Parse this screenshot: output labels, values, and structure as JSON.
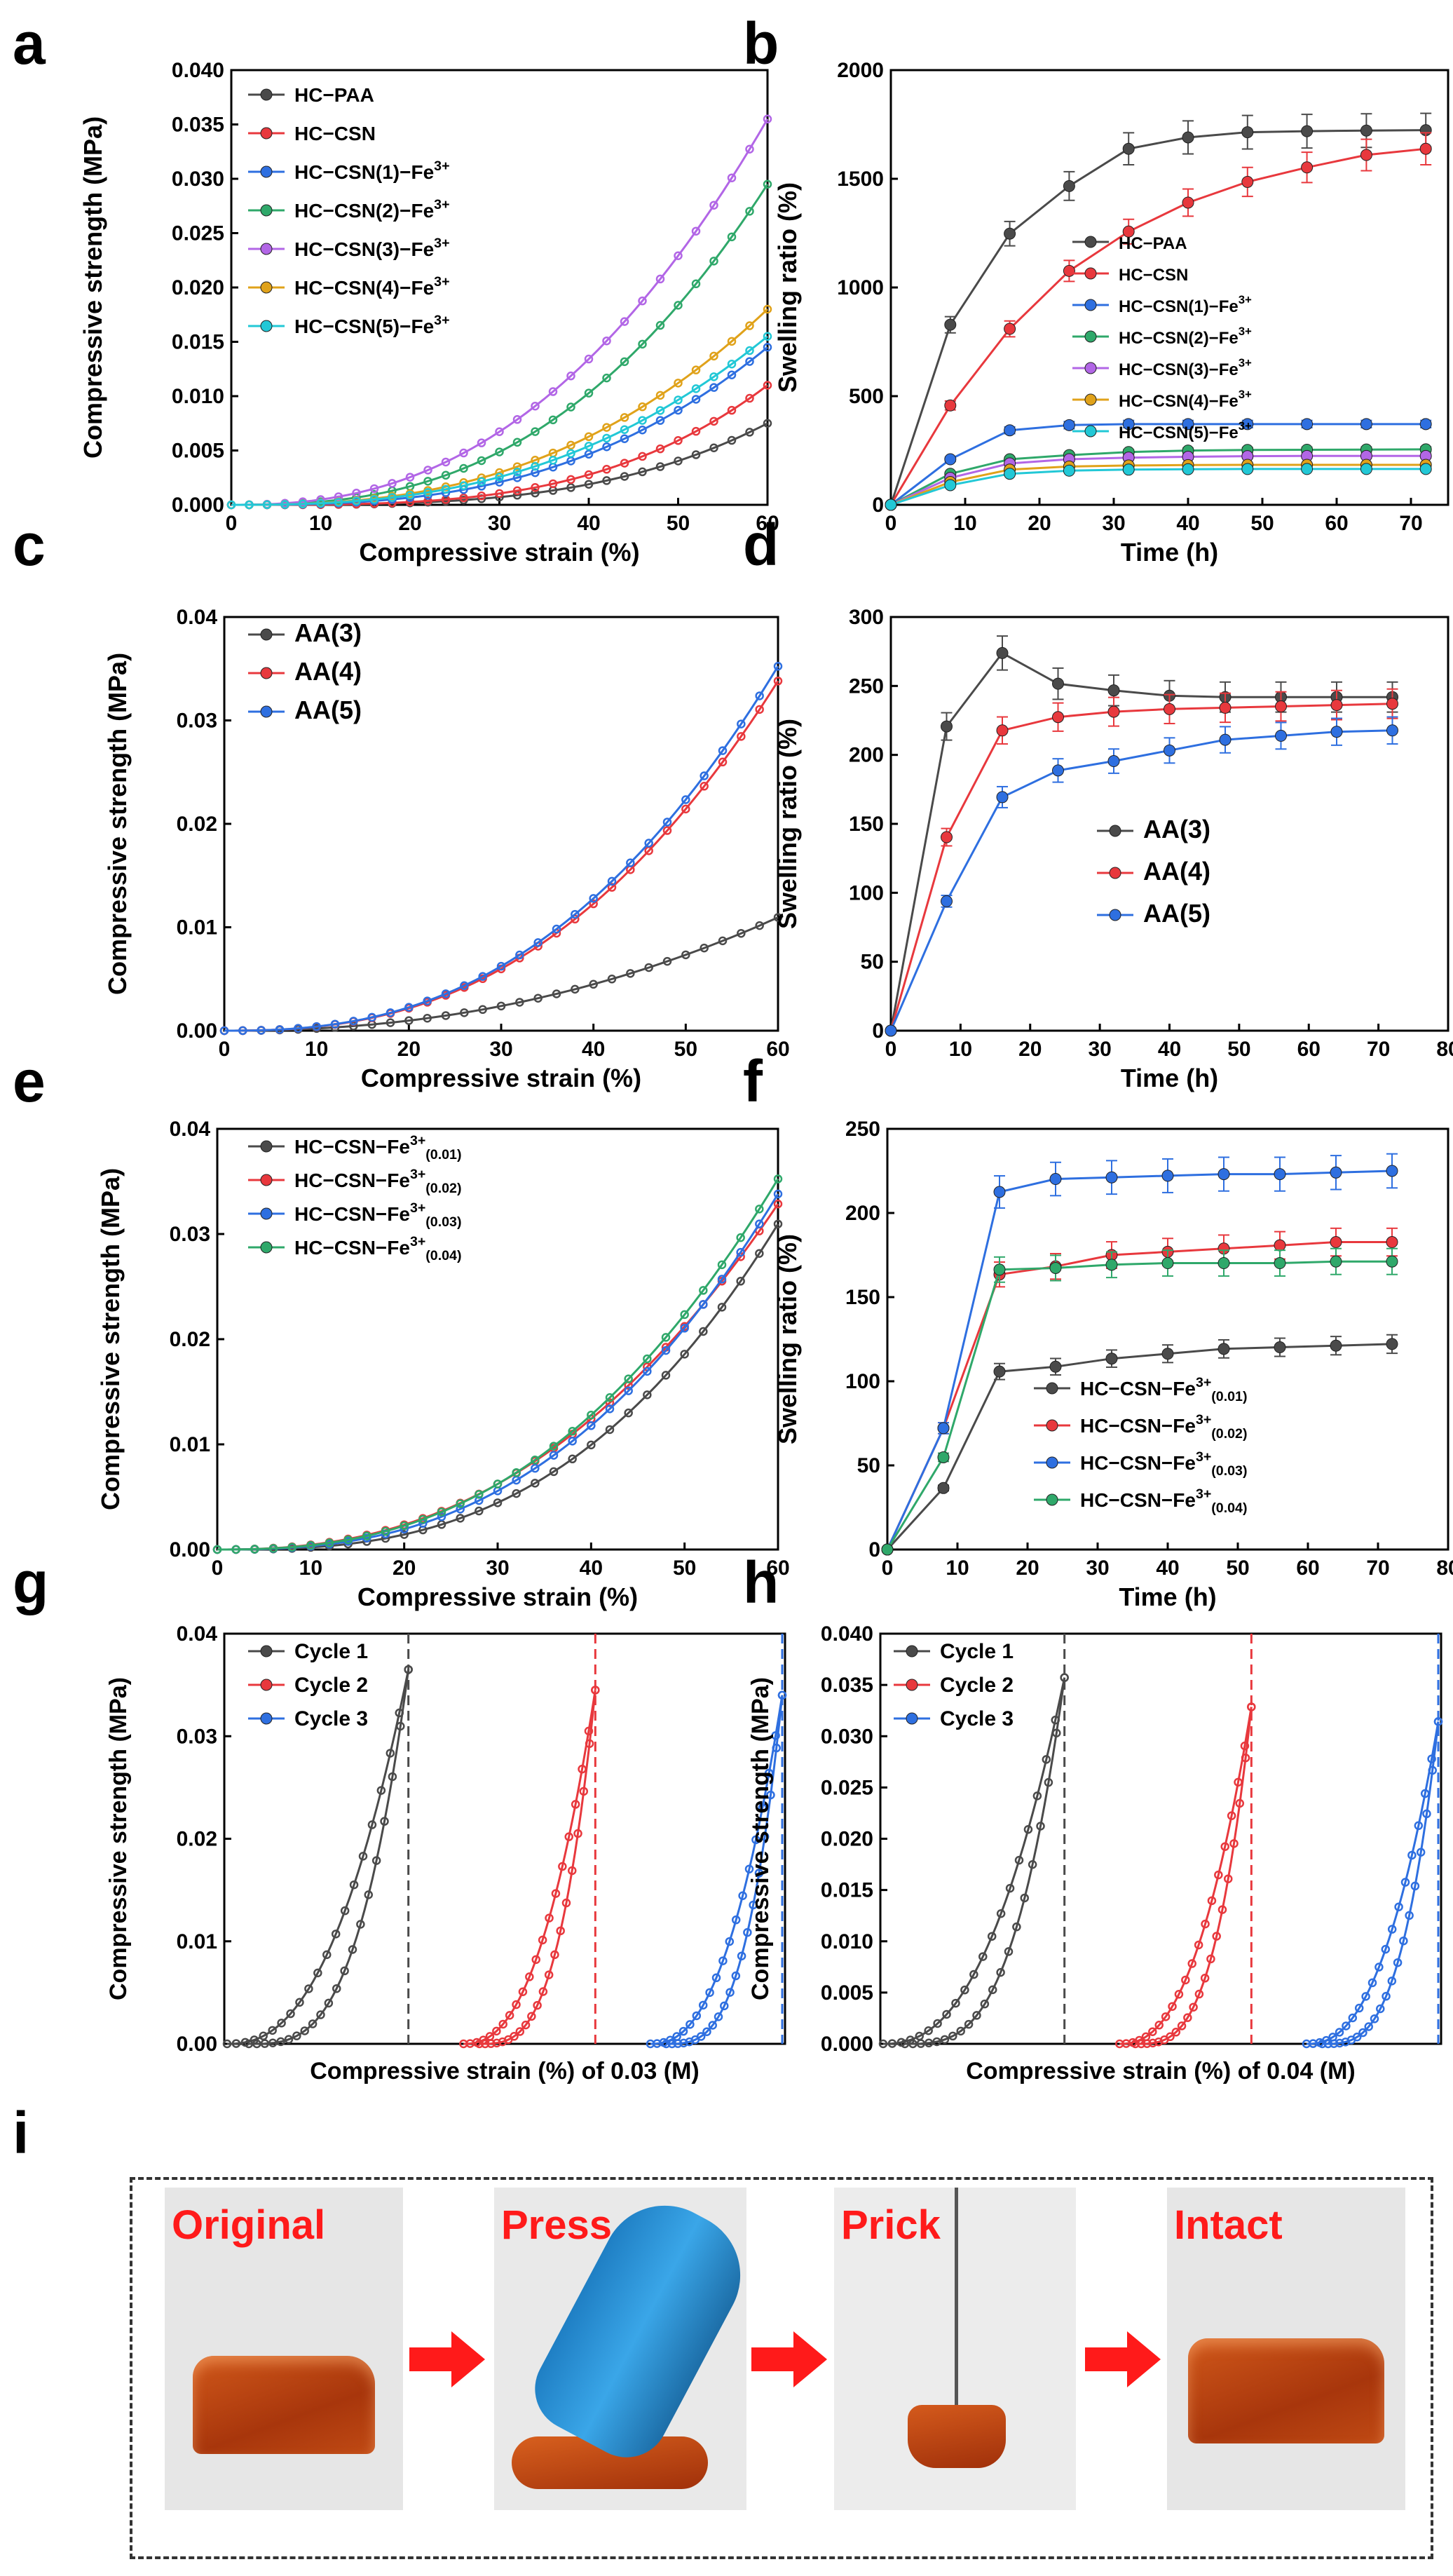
{
  "panel_letters": {
    "a": "a",
    "b": "b",
    "c": "c",
    "d": "d",
    "e": "e",
    "f": "f",
    "g": "g",
    "h": "h",
    "i": "i"
  },
  "colors": {
    "black": "#4a4a4a",
    "red": "#e8383d",
    "blue": "#2e6fe0",
    "green": "#2fa86a",
    "purple": "#b266e6",
    "orange": "#e0a21a",
    "cyan": "#22c8d6"
  },
  "chart_data": [
    {
      "id": "a",
      "type": "line",
      "title": "",
      "xlabel": "Compressive strain (%)",
      "ylabel": "Compressive strength (MPa)",
      "xlim": [
        0,
        60
      ],
      "ylim": [
        0,
        0.04
      ],
      "xticks": [
        "0",
        "10",
        "20",
        "30",
        "40",
        "50",
        "60"
      ],
      "yticks": [
        "0.000",
        "0.005",
        "0.010",
        "0.015",
        "0.020",
        "0.025",
        "0.030",
        "0.035",
        "0.040"
      ],
      "legend": "top-left",
      "series": [
        {
          "name": "HC−PAA",
          "sup": "",
          "color": "black",
          "end": 0.0075,
          "p": 3.4
        },
        {
          "name": "HC−CSN",
          "sup": "",
          "color": "red",
          "end": 0.011,
          "p": 3.4
        },
        {
          "name": "HC−CSN(1)−Fe",
          "sup": "3+",
          "color": "blue",
          "end": 0.0145,
          "p": 2.8
        },
        {
          "name": "HC−CSN(2)−Fe",
          "sup": "3+",
          "color": "green",
          "end": 0.0295,
          "p": 2.6
        },
        {
          "name": "HC−CSN(3)−Fe",
          "sup": "3+",
          "color": "purple",
          "end": 0.0355,
          "p": 2.4
        },
        {
          "name": "HC−CSN(4)−Fe",
          "sup": "3+",
          "color": "orange",
          "end": 0.018,
          "p": 2.6
        },
        {
          "name": "HC−CSN(5)−Fe",
          "sup": "3+",
          "color": "cyan",
          "end": 0.0155,
          "p": 2.6
        }
      ]
    },
    {
      "id": "b",
      "type": "line",
      "title": "",
      "xlabel": "Time (h)",
      "ylabel": "Swelling ratio (%)",
      "xlim": [
        0,
        75
      ],
      "ylim": [
        0,
        2100
      ],
      "xticks": [
        "0",
        "10",
        "20",
        "30",
        "40",
        "50",
        "60",
        "70"
      ],
      "yticks": [
        "0",
        "500",
        "1000",
        "1500",
        "2000"
      ],
      "x": [
        0,
        8,
        16,
        24,
        32,
        40,
        48,
        56,
        64,
        72
      ],
      "legend": "center-right",
      "series": [
        {
          "name": "HC−PAA",
          "sup": "",
          "color": "black",
          "values": [
            0,
            870,
            1310,
            1540,
            1720,
            1775,
            1800,
            1805,
            1808,
            1810
          ]
        },
        {
          "name": "HC−CSN",
          "sup": "",
          "color": "red",
          "values": [
            0,
            480,
            850,
            1130,
            1320,
            1460,
            1560,
            1630,
            1690,
            1720
          ]
        },
        {
          "name": "HC−CSN(1)−Fe",
          "sup": "3+",
          "color": "blue",
          "values": [
            0,
            220,
            360,
            385,
            390,
            390,
            390,
            390,
            390,
            390
          ]
        },
        {
          "name": "HC−CSN(2)−Fe",
          "sup": "3+",
          "color": "green",
          "values": [
            0,
            150,
            220,
            240,
            255,
            262,
            265,
            266,
            267,
            268
          ]
        },
        {
          "name": "HC−CSN(3)−Fe",
          "sup": "3+",
          "color": "purple",
          "values": [
            0,
            130,
            200,
            220,
            228,
            232,
            235,
            236,
            236,
            236
          ]
        },
        {
          "name": "HC−CSN(4)−Fe",
          "sup": "3+",
          "color": "orange",
          "values": [
            0,
            110,
            170,
            185,
            190,
            192,
            193,
            193,
            193,
            193
          ]
        },
        {
          "name": "HC−CSN(5)−Fe",
          "sup": "3+",
          "color": "cyan",
          "values": [
            0,
            95,
            150,
            165,
            170,
            172,
            173,
            173,
            173,
            173
          ]
        }
      ]
    },
    {
      "id": "c",
      "type": "line",
      "title": "",
      "xlabel": "Compressive strain (%)",
      "ylabel": "Compressive strength (MPa)",
      "xlim": [
        0,
        60
      ],
      "ylim": [
        0,
        0.042
      ],
      "xticks": [
        "0",
        "10",
        "20",
        "30",
        "40",
        "50",
        "60"
      ],
      "yticks": [
        "0.00",
        "0.01",
        "0.02",
        "0.03",
        "0.04"
      ],
      "legend": "top-left",
      "series": [
        {
          "name": "AA(3)",
          "sup": "",
          "color": "black",
          "end": 0.0115,
          "p": 2.2
        },
        {
          "name": "AA(4)",
          "sup": "",
          "color": "red",
          "end": 0.0355,
          "p": 2.5
        },
        {
          "name": "AA(5)",
          "sup": "",
          "color": "blue",
          "end": 0.037,
          "p": 2.5
        }
      ]
    },
    {
      "id": "d",
      "type": "line",
      "title": "",
      "xlabel": "Time (h)",
      "ylabel": "Swelling ratio (%)",
      "xlim": [
        0,
        80
      ],
      "ylim": [
        0,
        310
      ],
      "xticks": [
        "0",
        "10",
        "20",
        "30",
        "40",
        "50",
        "60",
        "70",
        "80"
      ],
      "yticks": [
        "0",
        "50",
        "100",
        "150",
        "200",
        "250",
        "300"
      ],
      "x": [
        0,
        8,
        16,
        24,
        32,
        40,
        48,
        56,
        64,
        72
      ],
      "legend": "bottom-right",
      "series": [
        {
          "name": "AA(3)",
          "sup": "",
          "color": "black",
          "values": [
            0,
            228,
            283,
            260,
            255,
            251,
            250,
            250,
            250,
            250
          ]
        },
        {
          "name": "AA(4)",
          "sup": "",
          "color": "red",
          "values": [
            0,
            145,
            225,
            235,
            239,
            241,
            242,
            243,
            244,
            245
          ]
        },
        {
          "name": "AA(5)",
          "sup": "",
          "color": "blue",
          "values": [
            0,
            97,
            175,
            195,
            202,
            210,
            218,
            221,
            224,
            225
          ]
        }
      ]
    },
    {
      "id": "e",
      "type": "line",
      "title": "",
      "xlabel": "Compressive strain (%)",
      "ylabel": "Compressive strength (MPa)",
      "xlim": [
        0,
        60
      ],
      "ylim": [
        0,
        0.042
      ],
      "xticks": [
        "0",
        "10",
        "20",
        "30",
        "40",
        "50",
        "60"
      ],
      "yticks": [
        "0.00",
        "0.01",
        "0.02",
        "0.03",
        "0.04"
      ],
      "legend": "top-left",
      "series": [
        {
          "name": "HC−CSN−Fe",
          "sup": "3+",
          "sub": "(0.01)",
          "color": "black",
          "end": 0.0325,
          "p": 2.8
        },
        {
          "name": "HC−CSN−Fe",
          "sup": "3+",
          "sub": "(0.02)",
          "color": "red",
          "end": 0.0345,
          "p": 2.4
        },
        {
          "name": "HC−CSN−Fe",
          "sup": "3+",
          "sub": "(0.03)",
          "color": "blue",
          "end": 0.0355,
          "p": 2.6
        },
        {
          "name": "HC−CSN−Fe",
          "sup": "3+",
          "sub": "(0.04)",
          "color": "green",
          "end": 0.037,
          "p": 2.5
        }
      ]
    },
    {
      "id": "f",
      "type": "line",
      "title": "",
      "xlabel": "Time (h)",
      "ylabel": "Swelling ratio (%)",
      "xlim": [
        0,
        80
      ],
      "ylim": [
        0,
        260
      ],
      "xticks": [
        "0",
        "10",
        "20",
        "30",
        "40",
        "50",
        "60",
        "70",
        "80"
      ],
      "yticks": [
        "0",
        "50",
        "100",
        "150",
        "200",
        "250"
      ],
      "x": [
        0,
        8,
        16,
        24,
        32,
        40,
        48,
        56,
        64,
        72
      ],
      "legend": "bottom-right",
      "series": [
        {
          "name": "HC−CSN−Fe",
          "sup": "3+",
          "sub": "(0.01)",
          "color": "black",
          "values": [
            0,
            38,
            110,
            113,
            118,
            121,
            124,
            125,
            126,
            127
          ]
        },
        {
          "name": "HC−CSN−Fe",
          "sup": "3+",
          "sub": "(0.02)",
          "color": "red",
          "values": [
            0,
            75,
            170,
            175,
            182,
            184,
            186,
            188,
            190,
            190
          ]
        },
        {
          "name": "HC−CSN−Fe",
          "sup": "3+",
          "sub": "(0.03)",
          "color": "blue",
          "values": [
            0,
            75,
            221,
            229,
            230,
            231,
            232,
            232,
            233,
            234
          ]
        },
        {
          "name": "HC−CSN−Fe",
          "sup": "3+",
          "sub": "(0.04)",
          "color": "green",
          "values": [
            0,
            57,
            173,
            174,
            176,
            177,
            177,
            177,
            178,
            178
          ]
        }
      ]
    },
    {
      "id": "g",
      "type": "line",
      "title": "",
      "xlabel": "Compressive strain (%) of 0.03 (M)",
      "ylabel": "Compressive strength (MPa)",
      "ylim": [
        0,
        0.04
      ],
      "yticks": [
        "0.00",
        "0.01",
        "0.02",
        "0.03",
        "0.04"
      ],
      "legend": "top-left",
      "series": [
        {
          "name": "Cycle 1",
          "sup": "",
          "color": "black",
          "peak": 0.0365
        },
        {
          "name": "Cycle 2",
          "sup": "",
          "color": "red",
          "peak": 0.0345
        },
        {
          "name": "Cycle 3",
          "sup": "",
          "color": "blue",
          "peak": 0.034
        }
      ]
    },
    {
      "id": "h",
      "type": "line",
      "title": "",
      "xlabel": "Compressive strain (%) of 0.04 (M)",
      "ylabel": "Compressive strength (MPa)",
      "ylim": [
        0,
        0.042
      ],
      "yticks": [
        "0.000",
        "0.005",
        "0.010",
        "0.015",
        "0.020",
        "0.025",
        "0.030",
        "0.035",
        "0.040"
      ],
      "legend": "top-left",
      "series": [
        {
          "name": "Cycle 1",
          "sup": "",
          "color": "black",
          "peak": 0.0375
        },
        {
          "name": "Cycle 2",
          "sup": "",
          "color": "red",
          "peak": 0.0345
        },
        {
          "name": "Cycle 3",
          "sup": "",
          "color": "blue",
          "peak": 0.033
        }
      ]
    }
  ],
  "photos": {
    "captions": [
      "Original",
      "Press",
      "Prick",
      "Intact"
    ]
  }
}
